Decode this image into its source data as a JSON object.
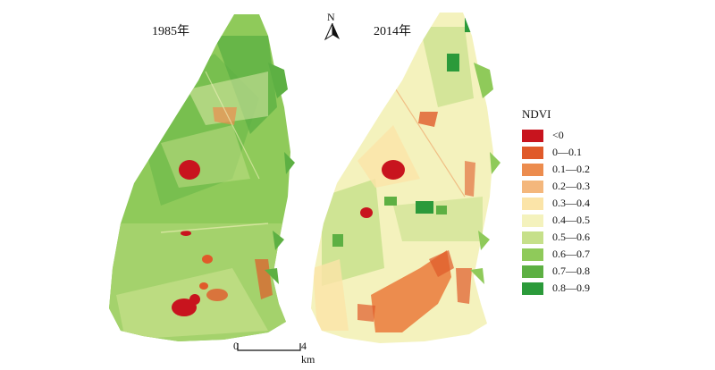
{
  "panels": [
    {
      "title": "1985年"
    },
    {
      "title": "2014年"
    }
  ],
  "north": {
    "label": "N"
  },
  "legend": {
    "title": "NDVI",
    "items": [
      {
        "label": "<0",
        "color": "#c8141e"
      },
      {
        "label": "0—0.1",
        "color": "#e05a2a"
      },
      {
        "label": "0.1—0.2",
        "color": "#ec8c4e"
      },
      {
        "label": "0.2—0.3",
        "color": "#f4b77c"
      },
      {
        "label": "0.3—0.4",
        "color": "#fbe4a8"
      },
      {
        "label": "0.4—0.5",
        "color": "#f4f2bd"
      },
      {
        "label": "0.5—0.6",
        "color": "#c6e08a"
      },
      {
        "label": "0.6—0.7",
        "color": "#8fca5a"
      },
      {
        "label": "0.7—0.8",
        "color": "#5db043"
      },
      {
        "label": "0.8—0.9",
        "color": "#2b9a3a"
      }
    ]
  },
  "scale": {
    "start": "0",
    "end": "4 km"
  }
}
